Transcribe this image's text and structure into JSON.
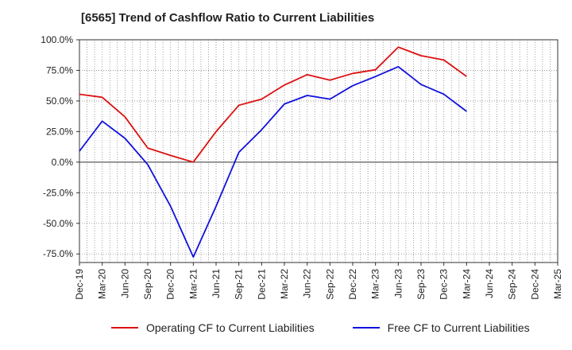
{
  "chart_data": {
    "type": "line",
    "title": "[6565]  Trend of Cashflow Ratio to Current Liabilities",
    "xlabel": "",
    "ylabel": "",
    "categories": [
      "Dec-19",
      "Mar-20",
      "Jun-20",
      "Sep-20",
      "Dec-20",
      "Mar-21",
      "Jun-21",
      "Sep-21",
      "Dec-21",
      "Mar-22",
      "Jun-22",
      "Sep-22",
      "Dec-22",
      "Mar-23",
      "Jun-23",
      "Sep-23",
      "Dec-23",
      "Mar-24",
      "Jun-24",
      "Sep-24",
      "Dec-24",
      "Mar-25"
    ],
    "ylim": [
      -82,
      100
    ],
    "yticks": [
      100,
      75,
      50,
      25,
      0,
      -25,
      -50,
      -75
    ],
    "ytick_labels": [
      "100.0%",
      "75.0%",
      "50.0%",
      "25.0%",
      "0.0%",
      "-25.0%",
      "-50.0%",
      "-75.0%"
    ],
    "grid": true,
    "legend_position": "bottom",
    "series": [
      {
        "name": "Operating CF to Current Liabilities",
        "color": "#dd1111",
        "values": [
          55.5,
          53,
          37,
          11.5,
          5.5,
          0,
          25,
          46.5,
          51.5,
          63,
          71.5,
          67,
          72.5,
          75.5,
          94,
          87,
          83.5,
          70,
          null,
          null,
          null,
          null
        ]
      },
      {
        "name": "Free CF to Current Liabilities",
        "color": "#1111dd",
        "values": [
          9,
          33.5,
          19.5,
          -2,
          -36,
          -77.5,
          -36,
          8,
          26.5,
          47.5,
          54.5,
          51.5,
          62.5,
          70,
          78,
          63.5,
          55.5,
          41.5,
          null,
          null,
          null,
          null
        ]
      }
    ]
  }
}
